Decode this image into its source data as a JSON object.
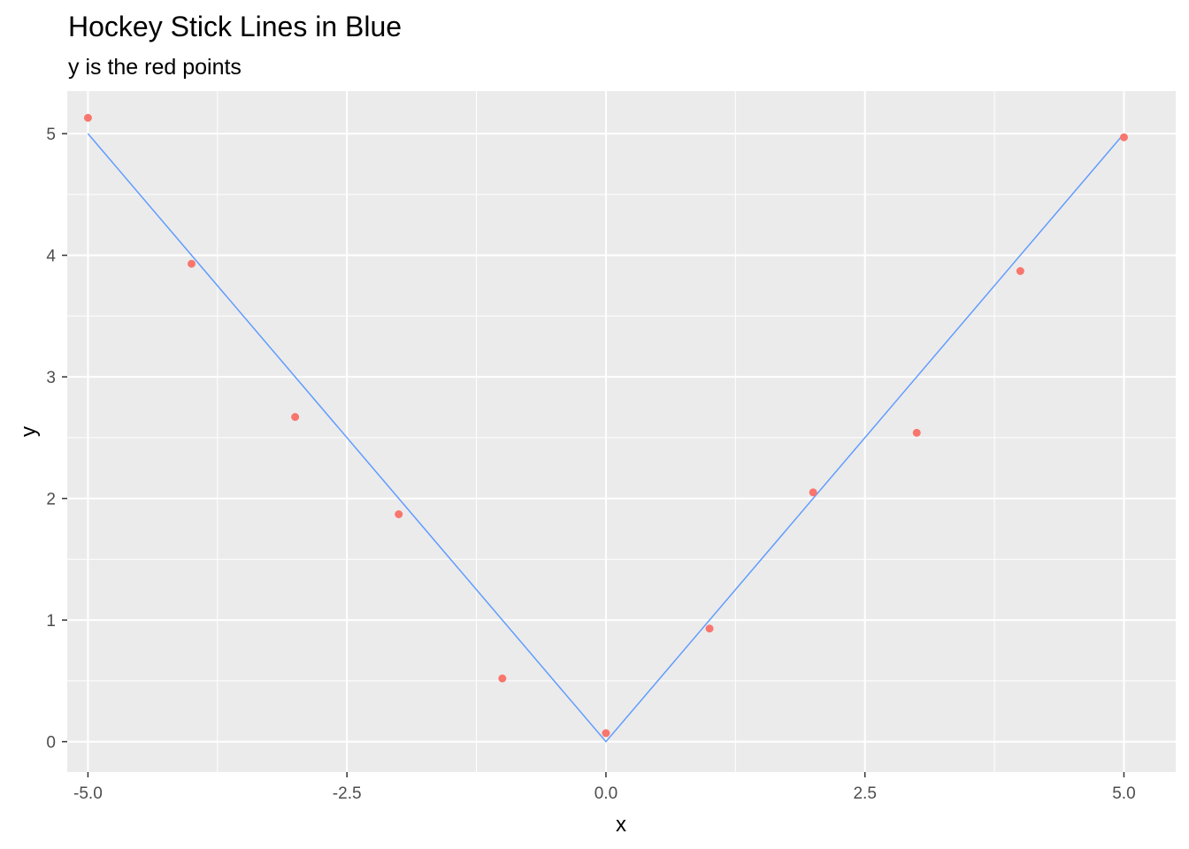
{
  "chart_data": {
    "type": "scatter",
    "title": "Hockey Stick Lines in Blue",
    "subtitle": "y is the red points",
    "xlabel": "x",
    "ylabel": "y",
    "xlim": [
      -5.2,
      5.5
    ],
    "ylim": [
      -0.25,
      5.35
    ],
    "x_ticks": [
      -5.0,
      -2.5,
      0.0,
      2.5,
      5.0
    ],
    "x_tick_labels": [
      "-5.0",
      "-2.5",
      "0.0",
      "2.5",
      "5.0"
    ],
    "y_ticks": [
      0,
      1,
      2,
      3,
      4,
      5
    ],
    "y_tick_labels": [
      "0",
      "1",
      "2",
      "3",
      "4",
      "5"
    ],
    "grid": true,
    "panel_background": "#ebebeb",
    "series": [
      {
        "kind": "points",
        "color": "#f8766d",
        "x": [
          -5,
          -4,
          -3,
          -2,
          -1,
          0,
          1,
          2,
          3,
          4,
          5
        ],
        "y": [
          5.13,
          3.93,
          2.67,
          1.87,
          0.52,
          0.07,
          0.93,
          2.05,
          2.54,
          3.87,
          4.97
        ]
      },
      {
        "kind": "line",
        "color": "#619cff",
        "x": [
          -5,
          0,
          5
        ],
        "y": [
          5,
          0,
          5
        ]
      }
    ]
  }
}
